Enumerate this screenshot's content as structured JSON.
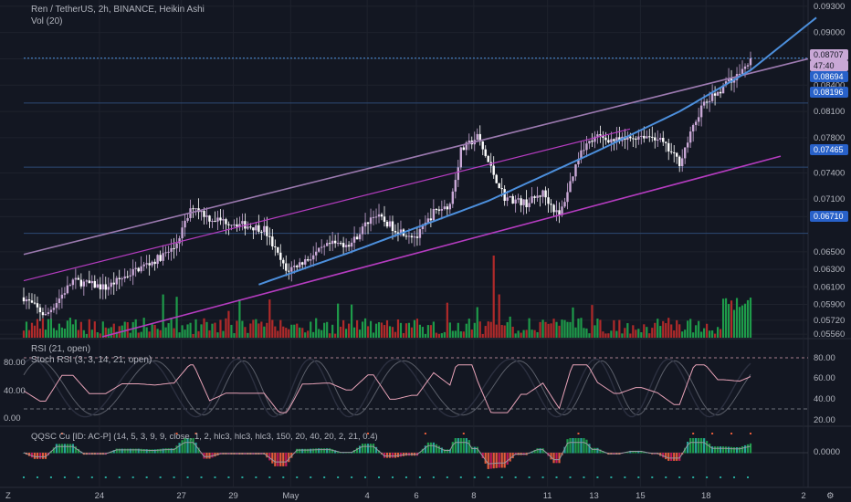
{
  "header": {
    "symbol_line": "Ren / TetherUS, 2h, BINANCE, Heikin Ashi",
    "volume_line": "Vol (20)"
  },
  "rsi_pane": {
    "title": "RSI (21, open)",
    "stoch_title": "Stoch RSI (3, 3, 14, 21, open)",
    "left_ticks": [
      "80.00",
      "40.00",
      "0.00"
    ],
    "right_ticks": [
      "80.00",
      "60.00",
      "40.00",
      "20.00"
    ]
  },
  "osc_pane": {
    "title": "QQSC Cu [ID: AC-P] (14, 5, 3, 9, 9, close, 1, 2, hlc3, hlc3, hlc3, 150, 20, 40, 20, 2, 21, 0.4)",
    "right_tick": "0.0000"
  },
  "price_axis": {
    "ticks": [
      "0.09300",
      "0.09000",
      "0.08700",
      "0.08400",
      "0.08100",
      "0.07800",
      "0.07400",
      "0.07100",
      "0.06900",
      "0.06500",
      "0.06300",
      "0.06100",
      "0.05900",
      "0.05720",
      "0.05560"
    ],
    "badges": [
      {
        "label": "0.08707",
        "type": "last"
      },
      {
        "label": "47:40",
        "type": "countdown"
      },
      {
        "label": "0.08694",
        "type": "level"
      },
      {
        "label": "0.08196",
        "type": "level"
      },
      {
        "label": "0.07465",
        "type": "level"
      },
      {
        "label": "0.06710",
        "type": "level"
      }
    ]
  },
  "time_axis": {
    "labels": [
      "24",
      "27",
      "29",
      "May",
      "4",
      "6",
      "8",
      "11",
      "13",
      "15",
      "18",
      "2"
    ]
  },
  "corner": {
    "gear_label": "⚙",
    "zoom_label": "Z"
  },
  "chart_data": {
    "type": "candlestick",
    "style": "Heikin Ashi",
    "symbol": "Ren / TetherUS",
    "interval": "2h",
    "exchange": "BINANCE",
    "ylim": [
      0.0552,
      0.0935
    ],
    "last_price": 0.08707,
    "horizontal_levels": [
      0.08707,
      0.08196,
      0.07465,
      0.0671
    ],
    "colors": {
      "up": "#c9a8d6",
      "down": "#ffffff",
      "trend_upper": "#9c7ab0",
      "channel": "#b53cc0",
      "curve": "#4c8fdc",
      "vol_up": "#1e9b4a",
      "vol_down": "#b02a2a"
    },
    "price_path": [
      [
        0,
        0.0598
      ],
      [
        8,
        0.0577
      ],
      [
        18,
        0.0617
      ],
      [
        30,
        0.0609
      ],
      [
        42,
        0.0631
      ],
      [
        48,
        0.064
      ],
      [
        55,
        0.0654
      ],
      [
        62,
        0.0703
      ],
      [
        68,
        0.0688
      ],
      [
        75,
        0.0684
      ],
      [
        88,
        0.0676
      ],
      [
        96,
        0.0628
      ],
      [
        104,
        0.0642
      ],
      [
        112,
        0.0658
      ],
      [
        120,
        0.066
      ],
      [
        128,
        0.0693
      ],
      [
        136,
        0.0676
      ],
      [
        144,
        0.0667
      ],
      [
        150,
        0.0695
      ],
      [
        156,
        0.0704
      ],
      [
        160,
        0.0765
      ],
      [
        166,
        0.0781
      ],
      [
        170,
        0.0752
      ],
      [
        176,
        0.0712
      ],
      [
        184,
        0.0705
      ],
      [
        190,
        0.0717
      ],
      [
        196,
        0.069
      ],
      [
        204,
        0.0768
      ],
      [
        210,
        0.0781
      ],
      [
        218,
        0.0776
      ],
      [
        226,
        0.0783
      ],
      [
        232,
        0.078
      ],
      [
        240,
        0.0752
      ],
      [
        248,
        0.0815
      ],
      [
        256,
        0.0838
      ],
      [
        262,
        0.0853
      ],
      [
        266,
        0.087
      ]
    ],
    "curve": [
      [
        0,
        0.0535
      ],
      [
        60,
        0.0584
      ],
      [
        120,
        0.065
      ],
      [
        170,
        0.0708
      ],
      [
        210,
        0.0765
      ],
      [
        240,
        0.081
      ],
      [
        266,
        0.0857
      ]
    ]
  }
}
